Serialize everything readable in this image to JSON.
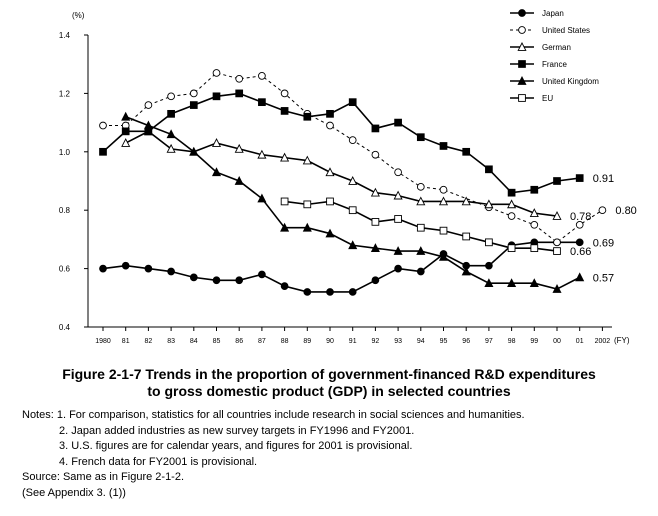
{
  "chart_data": {
    "type": "line",
    "y_unit": "(%)",
    "x_unit": "(FY)",
    "ylim": [
      0.4,
      1.4
    ],
    "yticks": [
      "0.4",
      "0.6",
      "0.8",
      "1.0",
      "1.2",
      "1.4"
    ],
    "x_tick_labels": [
      "1980",
      "81",
      "82",
      "83",
      "84",
      "85",
      "86",
      "87",
      "88",
      "89",
      "90",
      "91",
      "92",
      "93",
      "94",
      "95",
      "96",
      "97",
      "98",
      "99",
      "00",
      "01",
      "2002"
    ],
    "x": [
      1980,
      1981,
      1982,
      1983,
      1984,
      1985,
      1986,
      1987,
      1988,
      1989,
      1990,
      1991,
      1992,
      1993,
      1994,
      1995,
      1996,
      1997,
      1998,
      1999,
      2000,
      2001,
      2002
    ],
    "series": [
      {
        "name": "Japan",
        "marker": "circle-filled",
        "dashed": false,
        "end_label": "0.69",
        "values": [
          0.6,
          0.61,
          0.6,
          0.59,
          0.57,
          0.56,
          0.56,
          0.58,
          0.54,
          0.52,
          0.52,
          0.52,
          0.56,
          0.6,
          0.59,
          0.65,
          0.61,
          0.61,
          0.68,
          0.69,
          0.69,
          0.69,
          null
        ]
      },
      {
        "name": "United States",
        "marker": "circle-open",
        "dashed": true,
        "end_label": "0.80",
        "values": [
          1.09,
          1.09,
          1.16,
          1.19,
          1.2,
          1.27,
          1.25,
          1.26,
          1.2,
          1.13,
          1.09,
          1.04,
          0.99,
          0.93,
          0.88,
          0.87,
          null,
          0.81,
          0.78,
          0.75,
          0.69,
          0.75,
          0.8
        ]
      },
      {
        "name": "German",
        "marker": "triangle-open",
        "dashed": false,
        "end_label": "0.78",
        "values": [
          null,
          1.03,
          1.07,
          1.01,
          1.0,
          1.03,
          1.01,
          0.99,
          0.98,
          0.97,
          0.93,
          0.9,
          0.86,
          0.85,
          0.83,
          0.83,
          0.83,
          0.82,
          0.82,
          0.79,
          0.78,
          null,
          null
        ]
      },
      {
        "name": "France",
        "marker": "square-filled",
        "dashed": false,
        "end_label": "0.91",
        "values": [
          1.0,
          1.07,
          1.07,
          1.13,
          1.16,
          1.19,
          1.2,
          1.17,
          1.14,
          1.12,
          1.13,
          1.17,
          1.08,
          1.1,
          1.05,
          1.02,
          1.0,
          0.94,
          0.86,
          0.87,
          0.9,
          0.91,
          null
        ]
      },
      {
        "name": "United Kingdom",
        "marker": "triangle-filled",
        "dashed": false,
        "end_label": "0.57",
        "values": [
          null,
          1.12,
          1.09,
          1.06,
          1.0,
          0.93,
          0.9,
          0.84,
          0.74,
          0.74,
          0.72,
          0.68,
          0.67,
          0.66,
          0.66,
          0.64,
          0.59,
          0.55,
          0.55,
          0.55,
          0.53,
          0.57,
          null
        ]
      },
      {
        "name": "EU",
        "marker": "square-open",
        "dashed": false,
        "end_label": "0.66",
        "values": [
          null,
          null,
          null,
          null,
          null,
          null,
          null,
          null,
          0.83,
          0.82,
          0.83,
          0.8,
          0.76,
          0.77,
          0.74,
          0.73,
          0.71,
          0.69,
          0.67,
          0.67,
          0.66,
          null,
          null
        ]
      }
    ]
  },
  "caption": {
    "line1": "Figure 2-1-7  Trends in the proportion of government-financed R&D expenditures",
    "line2": "to gross domestic product (GDP) in selected countries"
  },
  "notes": {
    "n1": "Notes: 1. For comparison, statistics for all countries include research in social sciences and humanities.",
    "n2": "2. Japan added industries as new survey targets in FY1996 and FY2001.",
    "n3": "3. U.S. figures are for calendar years, and figures for 2001 is provisional.",
    "n4": "4. French data for FY2001 is provisional.",
    "source": "Source: Same as in Figure 2-1-2.",
    "appendix": "(See Appendix 3. (1))"
  }
}
